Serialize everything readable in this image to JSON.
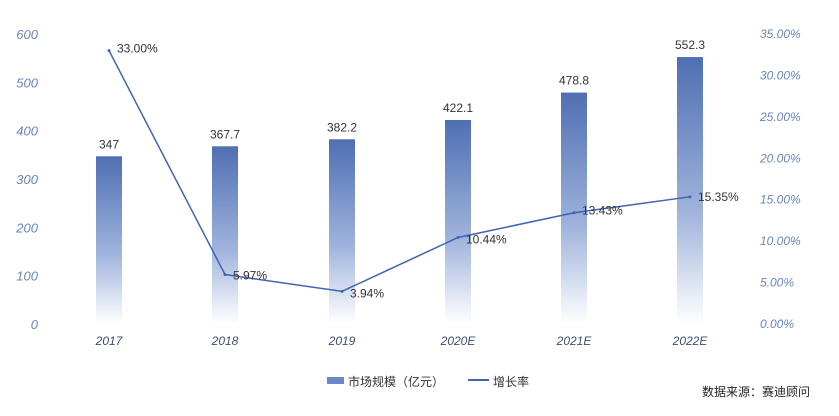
{
  "chart_data": {
    "type": "bar+line",
    "categories": [
      "2017",
      "2018",
      "2019",
      "2020E",
      "2021E",
      "2022E"
    ],
    "series": [
      {
        "name": "市场规模（亿元）",
        "type": "bar",
        "axis": "left",
        "values": [
          347,
          367.7,
          382.2,
          422.1,
          478.8,
          552.3
        ],
        "labels": [
          "347",
          "367.7",
          "382.2",
          "422.1",
          "478.8",
          "552.3"
        ]
      },
      {
        "name": "增长率",
        "type": "line",
        "axis": "right",
        "values": [
          33.0,
          5.97,
          3.94,
          10.44,
          13.43,
          15.35
        ],
        "labels": [
          "33.00%",
          "5.97%",
          "3.94%",
          "10.44%",
          "13.43%",
          "15.35%"
        ]
      }
    ],
    "left_axis": {
      "min": 0,
      "max": 600,
      "ticks": [
        0,
        100,
        200,
        300,
        400,
        500,
        600
      ],
      "tick_labels": [
        "0",
        "100",
        "200",
        "300",
        "400",
        "500",
        "600"
      ]
    },
    "right_axis": {
      "min": 0,
      "max": 35,
      "ticks": [
        0,
        5,
        10,
        15,
        20,
        25,
        30,
        35
      ],
      "tick_labels": [
        "0.00%",
        "5.00%",
        "10.00%",
        "15.00%",
        "20.00%",
        "25.00%",
        "30.00%",
        "35.00%"
      ]
    },
    "legend": {
      "placement": "bottom-center",
      "items": [
        {
          "label": "市场规模（亿元）",
          "marker": "bar"
        },
        {
          "label": "增长率",
          "marker": "line"
        }
      ]
    },
    "source_text": "数据来源：赛迪顾问",
    "colors": {
      "bar_top": "#4f6fb3",
      "bar_mid": "#9fb3dc",
      "bar_bottom": "#ffffff",
      "line": "#3f64b1",
      "axis_text": "#6a86b8",
      "x_axis_text": "#3d4f73",
      "label_text": "#333333"
    }
  }
}
